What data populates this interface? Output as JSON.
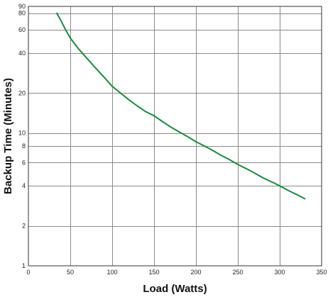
{
  "chart_data": {
    "type": "line",
    "xlabel": "Load (Watts)",
    "ylabel": "Backup Time (Minutes)",
    "xlim": [
      0,
      350
    ],
    "ylim": [
      1,
      90
    ],
    "yscale": "log",
    "grid": true,
    "x_ticks": [
      "0",
      "50",
      "100",
      "150",
      "200",
      "250",
      "300",
      "350"
    ],
    "y_ticks": [
      "1",
      "2",
      "4",
      "6",
      "8",
      "10",
      "20",
      "40",
      "60",
      "80",
      "90"
    ],
    "series": [
      {
        "color": "#1a8a3c",
        "points": [
          [
            34,
            80
          ],
          [
            40,
            68
          ],
          [
            45,
            59
          ],
          [
            50,
            52
          ],
          [
            60,
            43
          ],
          [
            70,
            36.5
          ],
          [
            80,
            31
          ],
          [
            90,
            26.5
          ],
          [
            100,
            22.5
          ],
          [
            110,
            20
          ],
          [
            120,
            17.8
          ],
          [
            130,
            16
          ],
          [
            140,
            14.5
          ],
          [
            150,
            13.5
          ],
          [
            160,
            12.2
          ],
          [
            170,
            11.1
          ],
          [
            180,
            10.2
          ],
          [
            190,
            9.4
          ],
          [
            200,
            8.6
          ],
          [
            210,
            8.0
          ],
          [
            220,
            7.4
          ],
          [
            230,
            6.8
          ],
          [
            240,
            6.3
          ],
          [
            250,
            5.8
          ],
          [
            260,
            5.4
          ],
          [
            270,
            5.0
          ],
          [
            280,
            4.6
          ],
          [
            290,
            4.3
          ],
          [
            300,
            4.0
          ],
          [
            310,
            3.7
          ],
          [
            320,
            3.45
          ],
          [
            330,
            3.2
          ]
        ]
      }
    ]
  }
}
